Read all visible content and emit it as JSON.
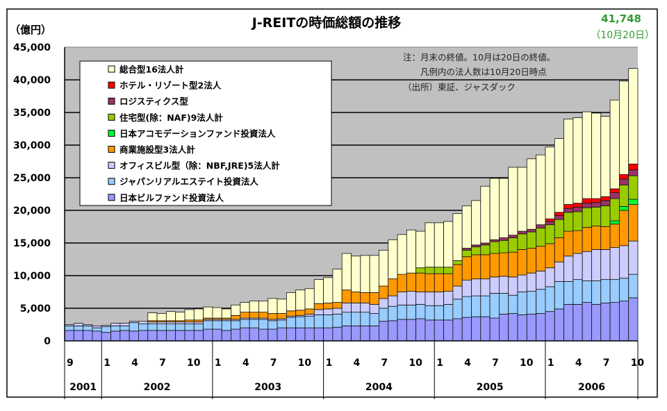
{
  "chart_data": {
    "type": "bar",
    "stacked": true,
    "title": "J-REITの時価総額の推移",
    "ylabel": "（億円）",
    "ylim": [
      0,
      45000
    ],
    "yticks": [
      "0",
      "5,000",
      "10,000",
      "15,000",
      "20,000",
      "25,000",
      "30,000",
      "35,000",
      "40,000",
      "45,000"
    ],
    "grid": true,
    "legend_position": "top-left",
    "annotation_value": "41,748",
    "annotation_date": "（10月20日）",
    "notes": [
      "注：月末の終値。10月は20日の終値。",
      "凡例内の法人数は10月20日時点",
      "（出所）東証、ジャスダック"
    ],
    "month_tick_labels": [
      {
        "month": "2001-09",
        "label": "9"
      },
      {
        "month": "2002-01",
        "label": "1"
      },
      {
        "month": "2002-04",
        "label": "4"
      },
      {
        "month": "2002-07",
        "label": "7"
      },
      {
        "month": "2002-10",
        "label": "10"
      },
      {
        "month": "2003-01",
        "label": "1"
      },
      {
        "month": "2003-04",
        "label": "4"
      },
      {
        "month": "2003-07",
        "label": "7"
      },
      {
        "month": "2003-10",
        "label": "10"
      },
      {
        "month": "2004-01",
        "label": "1"
      },
      {
        "month": "2004-04",
        "label": "4"
      },
      {
        "month": "2004-07",
        "label": "7"
      },
      {
        "month": "2004-10",
        "label": "10"
      },
      {
        "month": "2005-01",
        "label": "1"
      },
      {
        "month": "2005-04",
        "label": "4"
      },
      {
        "month": "2005-07",
        "label": "7"
      },
      {
        "month": "2005-10",
        "label": "10"
      },
      {
        "month": "2006-01",
        "label": "1"
      },
      {
        "month": "2006-04",
        "label": "4"
      },
      {
        "month": "2006-07",
        "label": "7"
      },
      {
        "month": "2006-10",
        "label": "10"
      }
    ],
    "years": [
      "2001",
      "2002",
      "2003",
      "2004",
      "2005",
      "2006"
    ],
    "x_start": "2001-09",
    "x_end": "2006-10",
    "background_color": "#c0c0c0",
    "series": [
      {
        "name": "日本ビルファンド投資法人",
        "color": "#9999ff",
        "values": [
          1600,
          1600,
          1600,
          1500,
          1300,
          1500,
          1600,
          1500,
          1600,
          1600,
          1600,
          1600,
          1600,
          1600,
          1600,
          1800,
          1800,
          1600,
          1800,
          2000,
          2000,
          1800,
          1800,
          2000,
          2000,
          2000,
          2000,
          2000,
          2000,
          2100,
          2300,
          2300,
          2300,
          2300,
          3000,
          3100,
          3300,
          3300,
          3400,
          3200,
          3200,
          3200,
          3400,
          3600,
          3700,
          3700,
          3500,
          4100,
          4200,
          4000,
          4100,
          4200,
          4500,
          4900,
          5600,
          5600,
          5900,
          5600,
          5800,
          5900,
          6100,
          6600
        ]
      },
      {
        "name": "ジャパンリアルエステイト投資法人",
        "color": "#99ccff",
        "values": [
          700,
          700,
          700,
          500,
          900,
          800,
          700,
          1300,
          1000,
          1000,
          1000,
          1000,
          1000,
          1000,
          1000,
          1300,
          1300,
          1500,
          1300,
          1300,
          1300,
          1500,
          1300,
          1200,
          1600,
          1700,
          1800,
          2000,
          2000,
          2000,
          2100,
          2100,
          2100,
          1900,
          2000,
          2200,
          2200,
          2200,
          2200,
          2200,
          2200,
          2400,
          3000,
          3200,
          3200,
          3200,
          3800,
          3200,
          2800,
          3500,
          3500,
          3700,
          3800,
          4200,
          3500,
          3800,
          3300,
          3600,
          3600,
          3500,
          3500,
          3600
        ]
      },
      {
        "name": "オフィスビル型（除：NBF,JRE)5法人計",
        "color": "#ccccff",
        "values": [
          200,
          400,
          200,
          300,
          200,
          400,
          400,
          200,
          400,
          300,
          300,
          300,
          300,
          300,
          300,
          200,
          200,
          200,
          200,
          200,
          200,
          200,
          200,
          200,
          200,
          200,
          300,
          800,
          900,
          900,
          1400,
          1400,
          1400,
          1400,
          1500,
          1600,
          2000,
          2100,
          1900,
          2100,
          2100,
          2000,
          2000,
          2500,
          2600,
          2600,
          2500,
          2600,
          2800,
          2600,
          2800,
          2800,
          2900,
          3000,
          3900,
          4000,
          4500,
          4800,
          4600,
          4900,
          5000,
          5100
        ]
      },
      {
        "name": "商業施設型3法人計",
        "color": "#ff9900",
        "values": [
          0,
          0,
          0,
          0,
          0,
          0,
          0,
          0,
          0,
          200,
          200,
          200,
          200,
          300,
          300,
          200,
          200,
          200,
          600,
          900,
          900,
          900,
          900,
          800,
          800,
          800,
          800,
          900,
          900,
          900,
          2000,
          1700,
          1600,
          1800,
          1900,
          2600,
          2700,
          2800,
          2900,
          2800,
          2800,
          2700,
          3300,
          3600,
          3700,
          3700,
          3600,
          3600,
          3800,
          3900,
          3800,
          3800,
          3700,
          3700,
          3800,
          3500,
          3700,
          3600,
          3500,
          3600,
          5400,
          5600
        ]
      },
      {
        "name": "日本アコモデーションファンド投資法人",
        "color": "#00ff33",
        "values": [
          0,
          0,
          0,
          0,
          0,
          0,
          0,
          0,
          0,
          0,
          0,
          0,
          0,
          0,
          0,
          0,
          0,
          0,
          0,
          0,
          0,
          0,
          0,
          0,
          0,
          0,
          0,
          0,
          0,
          0,
          0,
          0,
          0,
          0,
          0,
          0,
          0,
          0,
          0,
          0,
          0,
          0,
          0,
          0,
          0,
          0,
          0,
          0,
          0,
          0,
          0,
          0,
          0,
          0,
          0,
          0,
          0,
          0,
          0,
          500,
          600,
          800
        ]
      },
      {
        "name": "住宅型(除：NAF)9法人計",
        "color": "#99cc00",
        "values": [
          0,
          0,
          0,
          0,
          0,
          0,
          0,
          0,
          0,
          0,
          0,
          0,
          0,
          0,
          0,
          0,
          0,
          0,
          0,
          0,
          0,
          0,
          0,
          0,
          0,
          0,
          0,
          0,
          0,
          0,
          0,
          0,
          0,
          0,
          0,
          0,
          0,
          0,
          800,
          1000,
          1000,
          1000,
          600,
          1000,
          1200,
          1500,
          1800,
          1900,
          2200,
          2400,
          2500,
          2800,
          2900,
          2800,
          2900,
          2900,
          3000,
          2900,
          3200,
          3400,
          3300,
          3600
        ]
      },
      {
        "name": "ロジスティクス型",
        "color": "#993366",
        "values": [
          0,
          0,
          0,
          0,
          0,
          0,
          0,
          0,
          0,
          0,
          0,
          0,
          0,
          0,
          0,
          0,
          0,
          0,
          0,
          0,
          0,
          0,
          0,
          0,
          0,
          0,
          0,
          0,
          0,
          0,
          0,
          0,
          0,
          0,
          0,
          0,
          0,
          0,
          0,
          0,
          0,
          0,
          0,
          300,
          300,
          300,
          300,
          400,
          400,
          400,
          400,
          500,
          500,
          600,
          600,
          700,
          700,
          700,
          800,
          900,
          900,
          900
        ]
      },
      {
        "name": "ホテル・リゾート型2法人",
        "color": "#ff0000",
        "values": [
          0,
          0,
          0,
          0,
          0,
          0,
          0,
          0,
          0,
          0,
          0,
          0,
          0,
          0,
          0,
          0,
          0,
          0,
          0,
          0,
          0,
          0,
          0,
          0,
          0,
          0,
          0,
          0,
          0,
          0,
          0,
          0,
          0,
          0,
          0,
          0,
          0,
          0,
          0,
          0,
          0,
          0,
          0,
          0,
          0,
          0,
          0,
          0,
          0,
          0,
          0,
          0,
          400,
          500,
          600,
          600,
          700,
          600,
          600,
          600,
          700,
          900
        ]
      },
      {
        "name": "総合型16法人計",
        "color": "#ffffcc",
        "values": [
          0,
          0,
          0,
          0,
          0,
          0,
          0,
          0,
          0,
          1200,
          1100,
          1400,
          1300,
          1600,
          1700,
          1700,
          1600,
          1400,
          1600,
          1500,
          1700,
          1700,
          2300,
          2200,
          2800,
          3100,
          3100,
          3700,
          3900,
          5100,
          5600,
          5500,
          5700,
          5700,
          5500,
          6000,
          6100,
          6600,
          5600,
          6800,
          6800,
          7000,
          7200,
          6500,
          6800,
          8700,
          9400,
          9100,
          10400,
          9800,
          10800,
          10700,
          11000,
          11300,
          13100,
          13100,
          13300,
          13100,
          12300,
          13600,
          14300,
          14648
        ]
      }
    ]
  }
}
